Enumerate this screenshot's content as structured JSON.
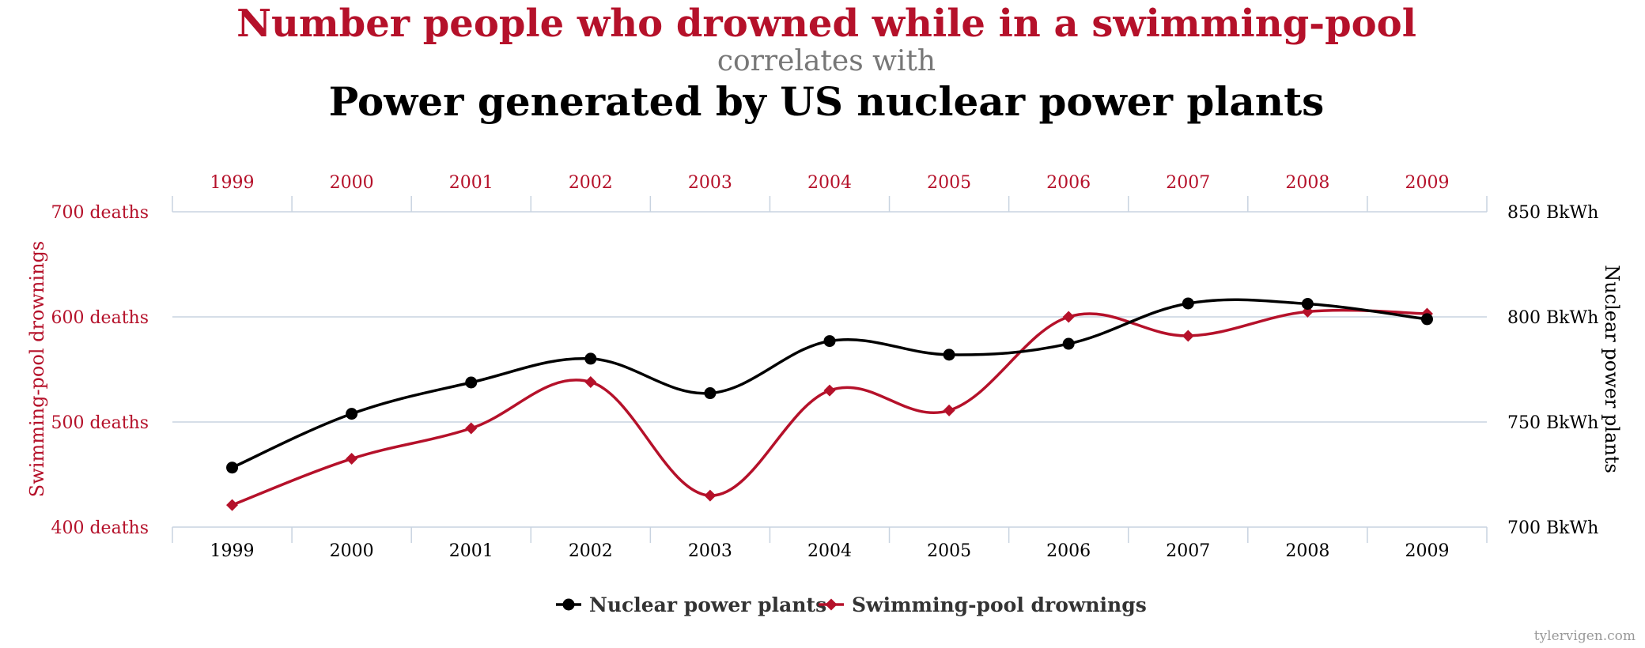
{
  "title_line1": "Number people who drowned while in a swimming-pool",
  "title_line2": "correlates with",
  "title_line3": "Power generated by US nuclear power plants",
  "credit": "tylervigen.com",
  "colors": {
    "red": "#b5112a",
    "black": "#000000",
    "grey": "#777777",
    "grid": "#c8d3e0",
    "legend_text": "#333333",
    "credit": "#999999"
  },
  "chart_data": {
    "type": "line",
    "x": [
      "1999",
      "2000",
      "2001",
      "2002",
      "2003",
      "2004",
      "2005",
      "2006",
      "2007",
      "2008",
      "2009"
    ],
    "series": [
      {
        "name": "Nuclear power plants",
        "axis": "right",
        "color": "#000000",
        "marker": "circle",
        "values": [
          728.3,
          753.9,
          768.8,
          780.1,
          763.7,
          788.5,
          782.0,
          787.2,
          806.4,
          806.2,
          798.9
        ]
      },
      {
        "name": "Swimming-pool drownings",
        "axis": "left",
        "color": "#b5112a",
        "marker": "diamond",
        "values": [
          421,
          465,
          494,
          538,
          430,
          530,
          511,
          600,
          582,
          605,
          603
        ]
      }
    ],
    "y_left": {
      "label": "Swimming-pool drownings",
      "range": [
        400,
        700
      ],
      "ticks": [
        {
          "value": 700,
          "label": "700 deaths"
        },
        {
          "value": 600,
          "label": "600 deaths"
        },
        {
          "value": 500,
          "label": "500 deaths"
        },
        {
          "value": 400,
          "label": "400 deaths"
        }
      ]
    },
    "y_right": {
      "label": "Nuclear power plants",
      "range": [
        700,
        850
      ],
      "ticks": [
        {
          "value": 850,
          "label": "850 BkWh"
        },
        {
          "value": 800,
          "label": "800 BkWh"
        },
        {
          "value": 750,
          "label": "750 BkWh"
        },
        {
          "value": 700,
          "label": "700 BkWh"
        }
      ]
    },
    "grid": true,
    "legend": {
      "position": "bottom-center",
      "entries": [
        "Nuclear power plants",
        "Swimming-pool drownings"
      ]
    }
  }
}
